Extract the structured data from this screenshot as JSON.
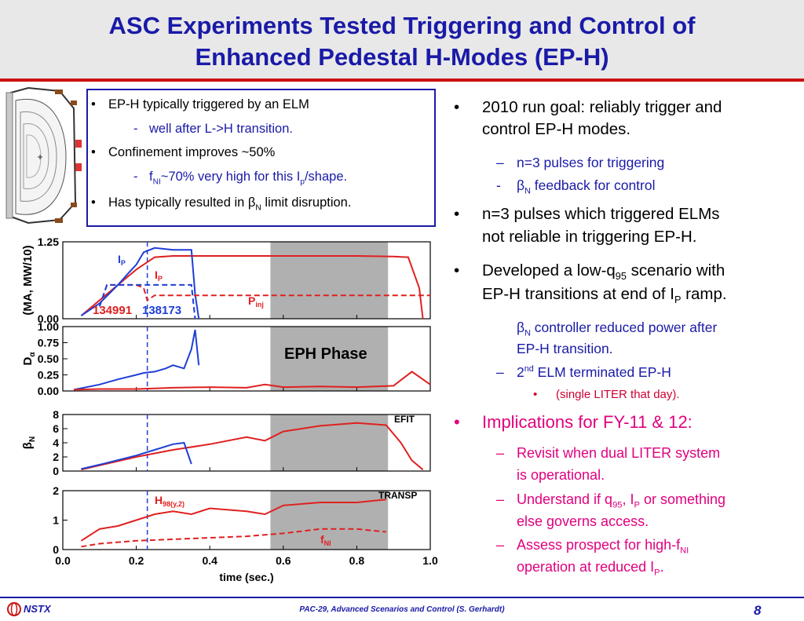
{
  "title": {
    "line1": "ASC Experiments Tested Triggering and Control of",
    "line2": "Enhanced Pedestal H-Modes (EP-H)"
  },
  "box": {
    "b1": "EP-H typically triggered by an ELM",
    "b1_sub": "well after L->H transition.",
    "b2": "Confinement improves ~50%",
    "b2_sub_a": "f",
    "b2_sub_sub": "NI",
    "b2_sub_b": "~70% very high for this I",
    "b2_sub_sub2": "p",
    "b2_sub_c": "/shape.",
    "b3_a": "Has typically resulted in ",
    "b3_beta": "β",
    "b3_sub": "N",
    "b3_b": " limit disruption."
  },
  "right": {
    "r1_l1": "2010 run goal: reliably trigger and",
    "r1_l2": "control EP-H modes.",
    "r1a": "n=3 pulses for triggering",
    "r1b_beta": "β",
    "r1b_sub": "N",
    "r1b": " feedback for control",
    "r2_l1": "n=3 pulses which triggered ELMs",
    "r2_l2": "not reliable in triggering EP-H.",
    "r3_l1a": "Developed a low-q",
    "r3_l1_sub": "95",
    "r3_l1b": " scenario with",
    "r3_l2a": "EP-H transitions at end of I",
    "r3_l2_sub": "P",
    "r3_l2b": " ramp.",
    "r3a_beta": "β",
    "r3a_sub": "N",
    "r3a_l1": " controller reduced power after",
    "r3a_l2": "EP-H transition.",
    "r3b_a": "2",
    "r3b_sup": "nd",
    "r3b_b": " ELM terminated EP-H",
    "r3b_i": "(single LITER that day).",
    "r4": "Implications for FY-11 & 12:",
    "r4a_l1": "Revisit when dual LITER system",
    "r4a_l2": "is operational.",
    "r4b_l1a": "Understand if q",
    "r4b_l1_sub": "95",
    "r4b_l1b": ", I",
    "r4b_l1_sub2": "P",
    "r4b_l1c": " or something",
    "r4b_l2": "else governs access.",
    "r4c_l1a": "Assess prospect for high-f",
    "r4c_l1_sub": "NI",
    "r4c_l2a": "operation at reduced I",
    "r4c_l2_sub": "P",
    "r4c_l2b": "."
  },
  "bullets": {
    "dot": "•",
    "dash": "-",
    "endash": "–",
    "box": ""
  },
  "footer": {
    "text": "PAC-29, Advanced Scenarios and Control (S. Gerhardt)",
    "page": "8",
    "logo": "NSTX"
  },
  "colors": {
    "blue": "#1a1aa8",
    "red": "#e02020",
    "trace_blue": "#1f3fd6",
    "phase": "#b0b0b0",
    "magenta": "#e0007f"
  },
  "chart_data": [
    {
      "type": "line",
      "ylabel": "(MA, MW/10)",
      "ylim": [
        0,
        1.25
      ],
      "yticks": [
        "0.00",
        "1.25"
      ],
      "xlim": [
        0,
        1.0
      ],
      "annotations": [
        "I",
        "P",
        "I",
        "P",
        "P",
        "inj",
        "134991",
        "138173"
      ],
      "series": [
        {
          "name": "Ip (134991)",
          "color": "#e02020",
          "x": [
            0.05,
            0.1,
            0.15,
            0.2,
            0.25,
            0.3,
            0.4,
            0.5,
            0.6,
            0.7,
            0.8,
            0.9,
            0.94,
            0.97,
            0.98
          ],
          "y": [
            0.05,
            0.3,
            0.55,
            0.8,
            1.0,
            1.02,
            1.02,
            1.02,
            1.02,
            1.02,
            1.02,
            1.01,
            1.0,
            0.5,
            0.0
          ]
        },
        {
          "name": "Ip (138173)",
          "color": "#1f3fd6",
          "x": [
            0.05,
            0.1,
            0.15,
            0.18,
            0.2,
            0.22,
            0.25,
            0.3,
            0.35,
            0.36,
            0.37
          ],
          "y": [
            0.05,
            0.25,
            0.55,
            0.75,
            0.88,
            1.08,
            1.15,
            1.12,
            1.12,
            0.4,
            0.0
          ]
        },
        {
          "name": "Pinj (134991)",
          "color": "#e02020",
          "dash": true,
          "x": [
            0.1,
            0.12,
            0.2,
            0.22,
            0.23,
            0.25,
            1.0
          ],
          "y": [
            0.2,
            0.55,
            0.55,
            0.5,
            0.3,
            0.38,
            0.38
          ]
        },
        {
          "name": "Pinj (138173)",
          "color": "#1f3fd6",
          "dash": true,
          "x": [
            0.1,
            0.12,
            0.2,
            0.22,
            0.25,
            0.35,
            0.36
          ],
          "y": [
            0.2,
            0.55,
            0.55,
            0.55,
            0.55,
            0.55,
            0.0
          ]
        }
      ]
    },
    {
      "type": "line",
      "ylabel": "D",
      "ylabel_sub": "α",
      "ylim": [
        0,
        1.0
      ],
      "yticks": [
        "0.00",
        "0.25",
        "0.50",
        "0.75",
        "1.00"
      ],
      "xlim": [
        0,
        1.0
      ],
      "annotations": [
        "EPH Phase"
      ],
      "series": [
        {
          "name": "Dα (138173)",
          "color": "#1f3fd6",
          "x": [
            0.03,
            0.1,
            0.15,
            0.2,
            0.22,
            0.25,
            0.28,
            0.3,
            0.33,
            0.35,
            0.36,
            0.37
          ],
          "y": [
            0.02,
            0.1,
            0.18,
            0.25,
            0.28,
            0.3,
            0.35,
            0.4,
            0.35,
            0.65,
            0.95,
            0.4
          ]
        },
        {
          "name": "Dα (134991)",
          "color": "#e02020",
          "x": [
            0.03,
            0.1,
            0.2,
            0.25,
            0.3,
            0.4,
            0.5,
            0.55,
            0.6,
            0.7,
            0.8,
            0.9,
            0.95,
            1.0
          ],
          "y": [
            0.02,
            0.03,
            0.03,
            0.04,
            0.05,
            0.06,
            0.05,
            0.1,
            0.06,
            0.07,
            0.06,
            0.08,
            0.3,
            0.1
          ]
        }
      ]
    },
    {
      "type": "line",
      "ylabel": "β",
      "ylabel_sub": "N",
      "ylim": [
        0,
        8
      ],
      "yticks": [
        "0",
        "2",
        "4",
        "6",
        "8"
      ],
      "xlim": [
        0,
        1.0
      ],
      "annotations": [
        "EFIT"
      ],
      "series": [
        {
          "name": "βN (134991)",
          "color": "#e02020",
          "x": [
            0.05,
            0.1,
            0.2,
            0.3,
            0.4,
            0.5,
            0.55,
            0.6,
            0.7,
            0.8,
            0.88,
            0.92,
            0.95,
            0.98
          ],
          "y": [
            0.2,
            0.8,
            2.0,
            3.0,
            3.8,
            4.8,
            4.3,
            5.6,
            6.4,
            6.8,
            6.5,
            4.0,
            1.5,
            0.2
          ]
        },
        {
          "name": "βN (138173)",
          "color": "#1f3fd6",
          "x": [
            0.05,
            0.1,
            0.2,
            0.25,
            0.3,
            0.33,
            0.35
          ],
          "y": [
            0.3,
            0.9,
            2.2,
            3.0,
            3.8,
            4.0,
            1.0
          ]
        }
      ]
    },
    {
      "type": "line",
      "ylabel": "",
      "xlabel": "time (sec.)",
      "ylim": [
        0,
        2
      ],
      "yticks": [
        "0",
        "1",
        "2"
      ],
      "xlim": [
        0,
        1.0
      ],
      "xticks": [
        "0.0",
        "0.2",
        "0.4",
        "0.6",
        "0.8",
        "1.0"
      ],
      "annotations": [
        "TRANSP",
        "H",
        "98(y,2)",
        "f",
        "NI"
      ],
      "series": [
        {
          "name": "H98(y,2)",
          "color": "#e02020",
          "x": [
            0.05,
            0.1,
            0.15,
            0.2,
            0.25,
            0.3,
            0.35,
            0.4,
            0.5,
            0.55,
            0.6,
            0.7,
            0.8,
            0.88
          ],
          "y": [
            0.3,
            0.7,
            0.8,
            1.0,
            1.2,
            1.3,
            1.2,
            1.4,
            1.3,
            1.2,
            1.5,
            1.6,
            1.6,
            1.7
          ]
        },
        {
          "name": "fNI",
          "color": "#e02020",
          "dash": true,
          "x": [
            0.05,
            0.1,
            0.2,
            0.3,
            0.4,
            0.5,
            0.6,
            0.7,
            0.8,
            0.88
          ],
          "y": [
            0.1,
            0.2,
            0.3,
            0.35,
            0.4,
            0.45,
            0.55,
            0.7,
            0.7,
            0.6
          ]
        }
      ]
    }
  ]
}
